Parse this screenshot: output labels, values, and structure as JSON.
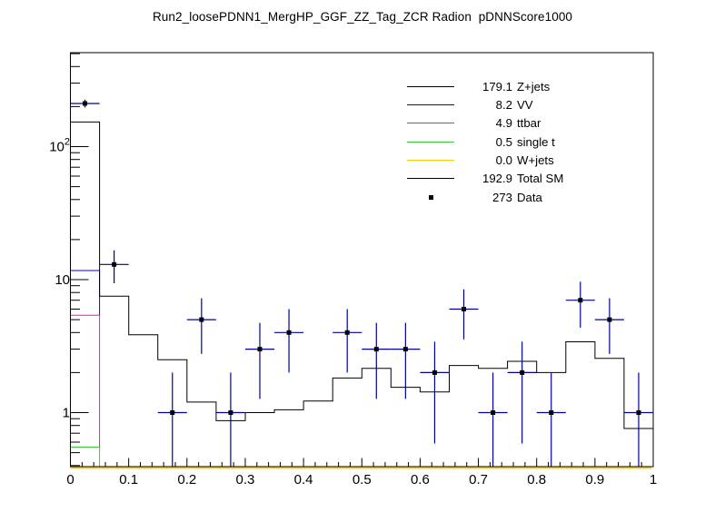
{
  "title": "Run2_loosePDNN1_MergHP_GGF_ZZ_Tag_ZCR Radion  pDNNScore1000",
  "legend": {
    "entries": [
      {
        "value": "179.1",
        "label": "Z+jets",
        "color": "#000000",
        "type": "line"
      },
      {
        "value": "8.2",
        "label": "VV",
        "color": "#0000ff",
        "type": "line"
      },
      {
        "value": "4.9",
        "label": "ttbar",
        "color": "#ff00ff",
        "type": "line"
      },
      {
        "value": "0.5",
        "label": "single t",
        "color": "#33cc33",
        "type": "line"
      },
      {
        "value": "0.0",
        "label": "W+jets",
        "color": "#ffcc00",
        "type": "line"
      },
      {
        "value": "192.9",
        "label": "Total SM",
        "color": "#000000",
        "type": "line"
      },
      {
        "value": "273",
        "label": "Data",
        "color": "#000000",
        "type": "marker"
      }
    ]
  },
  "chart_data": {
    "type": "bar",
    "subtype": "stacked-step-histogram-with-data-points",
    "title": "Run2_loosePDNN1_MergHP_GGF_ZZ_Tag_ZCR Radion  pDNNScore1000",
    "xlabel": "",
    "ylabel": "",
    "grid": false,
    "legend_position": "top-right",
    "x_axis": {
      "min": 0,
      "max": 1,
      "major_tick_step": 0.1,
      "minor_tick_step": 0.02,
      "tick_labels": [
        "0",
        "0.1",
        "0.2",
        "0.3",
        "0.4",
        "0.5",
        "0.6",
        "0.7",
        "0.8",
        "0.9",
        "1"
      ]
    },
    "y_axis": {
      "scale": "log",
      "min": 0.39,
      "max": 510,
      "major_ticks": [
        {
          "value": 1,
          "text": "1"
        },
        {
          "value": 10,
          "text": "10"
        },
        {
          "value": 100,
          "text": "10",
          "sup": "2"
        }
      ]
    },
    "bins": {
      "count": 20,
      "start": 0,
      "width": 0.05
    },
    "series": [
      {
        "name": "Total SM",
        "role": "histogram-outline",
        "color": "#000000",
        "values": [
          153,
          7.5,
          3.85,
          2.5,
          1.2,
          0.87,
          1.0,
          1.05,
          1.22,
          1.82,
          2.15,
          1.55,
          1.43,
          2.26,
          2.15,
          2.43,
          2.0,
          3.41,
          2.56,
          0.76
        ]
      },
      {
        "name": "VV stack boundary",
        "role": "stack-boundary-first-bin",
        "color": "#0000ff",
        "first_bin_value": 11.7
      },
      {
        "name": "ttbar stack boundary",
        "role": "stack-boundary-first-bin",
        "color": "#ff00ff",
        "first_bin_value": 5.4
      },
      {
        "name": "single t stack boundary",
        "role": "stack-boundary-first-bin",
        "color": "#33cc33",
        "first_bin_value": 0.55
      },
      {
        "name": "W+jets",
        "role": "zero-baseline",
        "color": "#ffcc00",
        "value": 0
      }
    ],
    "data_points": {
      "name": "Data",
      "marker": "square",
      "marker_color": "#000000",
      "error_bar_color": "#000099",
      "errors": "sqrt(y), lower bars clipped at frame bottom",
      "x_half_width": 0.025,
      "x": [
        0.025,
        0.075,
        0.175,
        0.225,
        0.275,
        0.325,
        0.375,
        0.475,
        0.525,
        0.575,
        0.625,
        0.675,
        0.725,
        0.775,
        0.825,
        0.875,
        0.925,
        0.975
      ],
      "y": [
        211,
        13,
        1,
        5,
        1,
        3,
        4,
        4,
        3,
        3,
        2,
        6,
        1,
        2,
        1,
        7,
        5,
        1
      ],
      "total": 273
    }
  }
}
